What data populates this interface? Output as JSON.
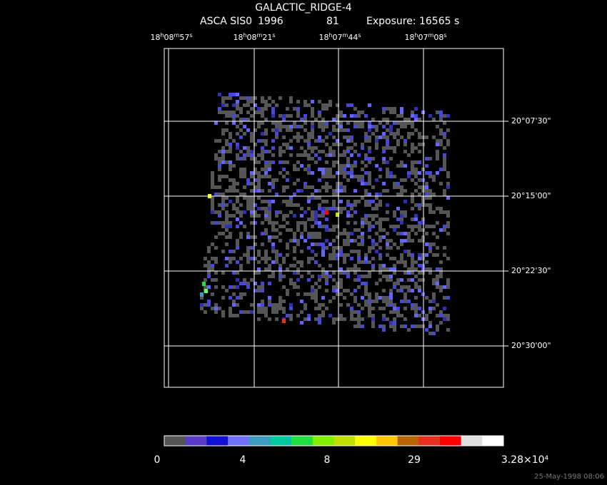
{
  "header": {
    "title": "GALACTIC_RIDGE-4",
    "instrument": "ASCA SIS0",
    "year": "1996",
    "sequence": "81",
    "exposure": "Exposure: 16565 s"
  },
  "ra_labels": [
    [
      "18",
      "h",
      "08",
      "m",
      "57",
      "s"
    ],
    [
      "18",
      "h",
      "08",
      "m",
      "21",
      "s"
    ],
    [
      "18",
      "h",
      "07",
      "m",
      "44",
      "s"
    ],
    [
      "18",
      "h",
      "07",
      "m",
      "08",
      "s"
    ]
  ],
  "dec_labels": [
    "20°07'30\"",
    "20°15'00\"",
    "20°22'30\"",
    "20°30'00\""
  ],
  "colorbar": {
    "colors": [
      "#555555",
      "#5a3cc8",
      "#1010d0",
      "#7070ff",
      "#3c9cc0",
      "#00c8a0",
      "#20e040",
      "#80f000",
      "#c0e000",
      "#ffff00",
      "#ffc800",
      "#b86400",
      "#e83020",
      "#ff0000",
      "#e0e0e0",
      "#ffffff"
    ],
    "labels": [
      "0",
      "4",
      "8",
      "29",
      "3.28×10⁴"
    ]
  },
  "footer": "25-May-1998 08:06"
}
